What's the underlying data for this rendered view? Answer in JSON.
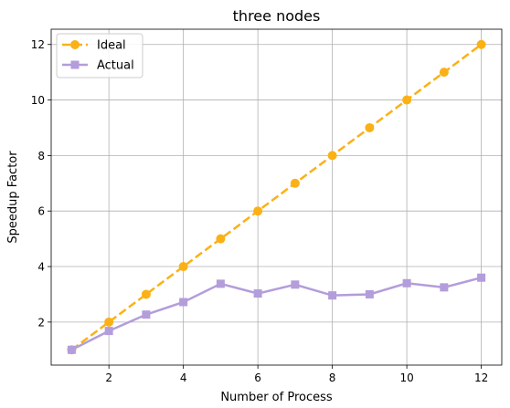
{
  "chart_data": {
    "type": "line",
    "title": "three nodes",
    "xlabel": "Number of Process",
    "ylabel": "Speedup Factor",
    "x": [
      1,
      2,
      3,
      4,
      5,
      6,
      7,
      8,
      9,
      10,
      11,
      12
    ],
    "xticks": [
      2,
      4,
      6,
      8,
      10,
      12
    ],
    "yticks": [
      2,
      4,
      6,
      8,
      10,
      12
    ],
    "xlim": [
      0.45,
      12.55
    ],
    "ylim": [
      0.45,
      12.55
    ],
    "grid": true,
    "legend_position": "top-left",
    "series": [
      {
        "name": "Ideal",
        "values": [
          1,
          2,
          3,
          4,
          5,
          6,
          7,
          8,
          9,
          10,
          11,
          12
        ],
        "color": "#FBB116",
        "marker": "circle",
        "linestyle": "dashed"
      },
      {
        "name": "Actual",
        "values": [
          1.0,
          1.68,
          2.27,
          2.72,
          3.38,
          3.03,
          3.35,
          2.96,
          3.0,
          3.4,
          3.25,
          3.6
        ],
        "color": "#B39DDB",
        "marker": "square",
        "linestyle": "solid"
      }
    ]
  }
}
